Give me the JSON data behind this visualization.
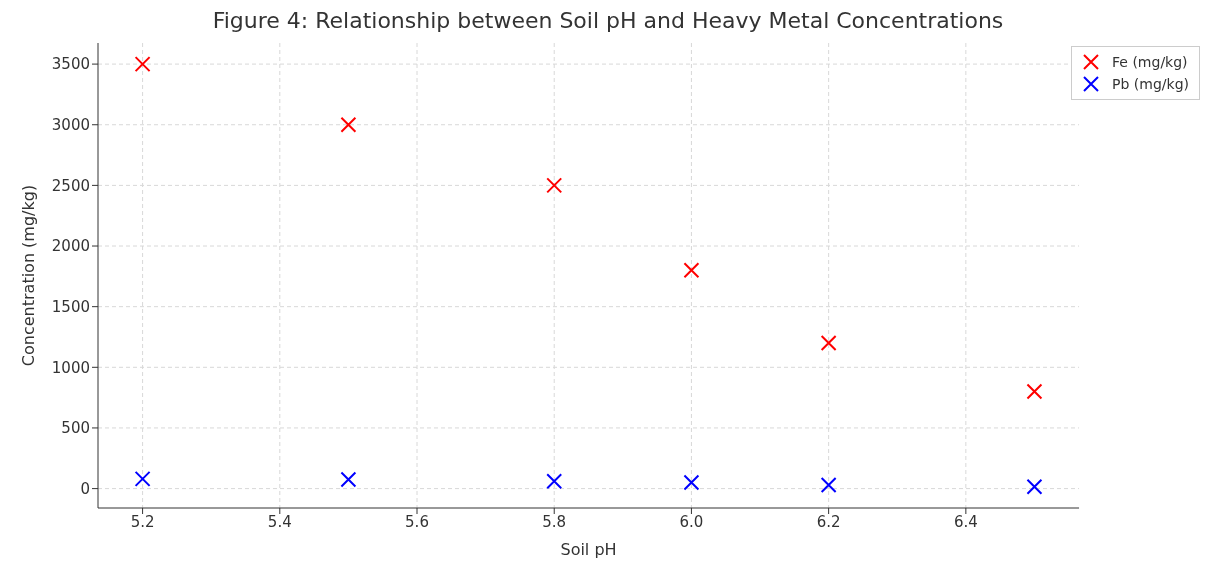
{
  "chart_data": {
    "type": "scatter",
    "title": "Figure 4: Relationship between Soil pH and Heavy Metal Concentrations",
    "xlabel": "Soil pH",
    "ylabel": "Concentration (mg/kg)",
    "x": [
      5.2,
      5.5,
      5.8,
      6.0,
      6.2,
      6.5
    ],
    "series": [
      {
        "name": "Fe (mg/kg)",
        "color": "#ff0000",
        "values": [
          3500,
          3000,
          2500,
          1800,
          1200,
          800
        ]
      },
      {
        "name": "Pb (mg/kg)",
        "color": "#0000ff",
        "values": [
          80,
          75,
          60,
          50,
          30,
          15
        ]
      }
    ],
    "xlim": [
      5.135,
      6.565
    ],
    "xticks": [
      {
        "value": 5.2,
        "label": "5.2"
      },
      {
        "value": 5.4,
        "label": "5.4"
      },
      {
        "value": 5.6,
        "label": "5.6"
      },
      {
        "value": 5.8,
        "label": "5.8"
      },
      {
        "value": 6.0,
        "label": "6.0"
      },
      {
        "value": 6.2,
        "label": "6.2"
      },
      {
        "value": 6.4,
        "label": "6.4"
      }
    ],
    "ylim": [
      -160,
      3674
    ],
    "yticks": [
      0,
      500,
      1000,
      1500,
      2000,
      2500,
      3000,
      3500
    ],
    "grid": true,
    "legend": "top right",
    "marker": "cross"
  }
}
